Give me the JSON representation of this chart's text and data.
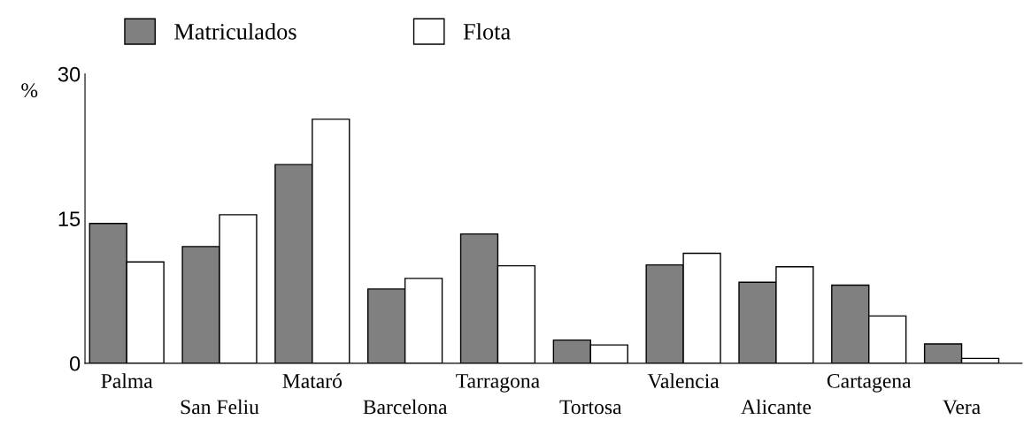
{
  "chart_data": {
    "type": "bar",
    "ylabel": "%",
    "categories": [
      "Palma",
      "San Feliu",
      "Mataró",
      "Barcelona",
      "Tarragona",
      "Tortosa",
      "Valencia",
      "Alicante",
      "Cartagena",
      "Vera"
    ],
    "series": [
      {
        "name": "Matriculados",
        "color": "#808080",
        "values": [
          14.5,
          12.1,
          20.6,
          7.7,
          13.4,
          2.4,
          10.2,
          8.4,
          8.1,
          2.0
        ]
      },
      {
        "name": "Flota",
        "color": "#ffffff",
        "values": [
          10.5,
          15.4,
          25.3,
          8.8,
          10.1,
          1.9,
          11.4,
          10.0,
          4.9,
          0.5
        ]
      }
    ],
    "ylim": [
      0,
      30
    ],
    "yticks": [
      0,
      15,
      30
    ],
    "grid": false,
    "legend": "top left"
  }
}
